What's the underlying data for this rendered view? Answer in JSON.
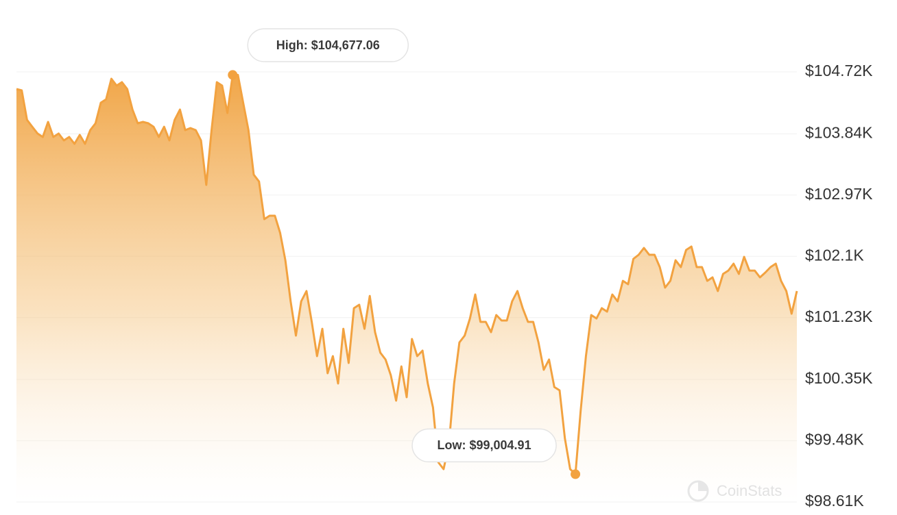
{
  "chart_data": {
    "type": "line",
    "color": "#f2a240",
    "grid": true,
    "ylim": [
      98610,
      104720
    ],
    "yticks": [
      {
        "value": 98610,
        "label": "$98.61K"
      },
      {
        "value": 99480,
        "label": "$99.48K"
      },
      {
        "value": 100350,
        "label": "$100.35K"
      },
      {
        "value": 101230,
        "label": "$101.23K"
      },
      {
        "value": 102100,
        "label": "$102.1K"
      },
      {
        "value": 102970,
        "label": "$102.97K"
      },
      {
        "value": 103840,
        "label": "$103.84K"
      },
      {
        "value": 104720,
        "label": "$104.72K"
      }
    ],
    "values": [
      104477,
      104457,
      104039,
      103941,
      103844,
      103796,
      104010,
      103796,
      103844,
      103747,
      103796,
      103698,
      103825,
      103698,
      103893,
      103990,
      104282,
      104331,
      104623,
      104525,
      104574,
      104477,
      104185,
      103990,
      104010,
      103990,
      103941,
      103796,
      103941,
      103747,
      104039,
      104185,
      103893,
      103922,
      103893,
      103747,
      103115,
      103893,
      104574,
      104525,
      104136,
      104677,
      104677,
      104282,
      103893,
      103260,
      103163,
      102628,
      102677,
      102677,
      102433,
      102044,
      101461,
      100974,
      101461,
      101607,
      101169,
      100682,
      101071,
      100439,
      100682,
      100293,
      101071,
      100585,
      101363,
      101412,
      101071,
      101538,
      101023,
      100731,
      100634,
      100410,
      100050,
      100536,
      100099,
      100926,
      100682,
      100760,
      100293,
      99953,
      99174,
      99077,
      99418,
      100293,
      100877,
      100974,
      101217,
      101558,
      101169,
      101169,
      101023,
      101266,
      101188,
      101188,
      101461,
      101607,
      101363,
      101169,
      101169,
      100877,
      100488,
      100634,
      100244,
      100196,
      99515,
      99077,
      99005,
      99904,
      100682,
      101266,
      101217,
      101363,
      101315,
      101558,
      101461,
      101752,
      101704,
      102064,
      102122,
      102219,
      102122,
      102122,
      101947,
      101655,
      101752,
      102044,
      101947,
      102190,
      102239,
      101947,
      101947,
      101752,
      101801,
      101607,
      101850,
      101898,
      101996,
      101850,
      102093,
      101898,
      101898,
      101801,
      101869,
      101947,
      101996,
      101752,
      101607,
      101285,
      101607
    ],
    "annotations": [
      {
        "text": "High: $104,677.06",
        "value": 104677.06
      },
      {
        "text": "Low: $99,004.91",
        "value": 99004.91
      }
    ],
    "watermark": "CoinStats"
  }
}
